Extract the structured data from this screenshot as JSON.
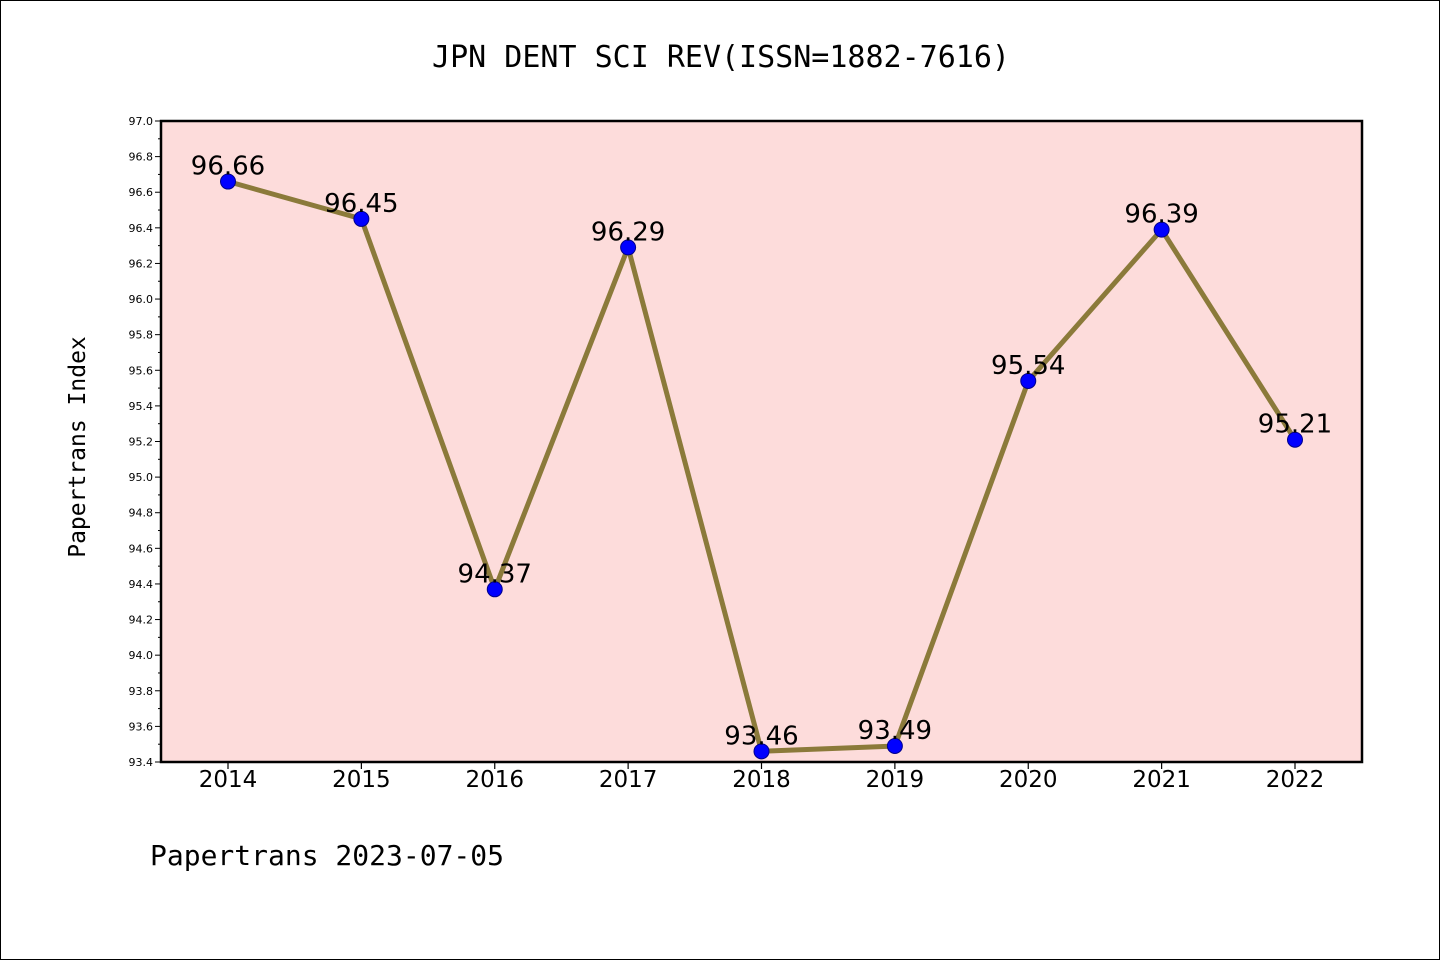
{
  "chart_data": {
    "type": "line",
    "title": "JPN DENT SCI REV(ISSN=1882-7616)",
    "xlabel": "",
    "ylabel": "Papertrans Index",
    "categories": [
      "2014",
      "2015",
      "2016",
      "2017",
      "2018",
      "2019",
      "2020",
      "2021",
      "2022"
    ],
    "series": [
      {
        "values": [
          96.66,
          96.45,
          94.37,
          96.29,
          93.46,
          93.49,
          95.54,
          96.39,
          95.21
        ],
        "data_labels": [
          "96.66",
          "96.45",
          "94.37",
          "96.29",
          "93.46",
          "93.49",
          "95.54",
          "96.39",
          "95.21"
        ]
      }
    ],
    "ylim": [
      93.4,
      97.0
    ],
    "yticks": [
      "93.4",
      "93.6",
      "93.8",
      "94.0",
      "94.2",
      "94.4",
      "94.6",
      "94.8",
      "95.0",
      "95.2",
      "95.4",
      "95.6",
      "95.8",
      "96.0",
      "96.2",
      "96.4",
      "96.6",
      "96.8",
      "97.0"
    ],
    "grid": false,
    "legend": "none",
    "colors": {
      "plot_background": "#fddcdb",
      "line": "#8b7a3a",
      "marker_fill": "#0000ff",
      "marker_edge": "#00008b"
    }
  },
  "footer": "Papertrans 2023-07-05"
}
